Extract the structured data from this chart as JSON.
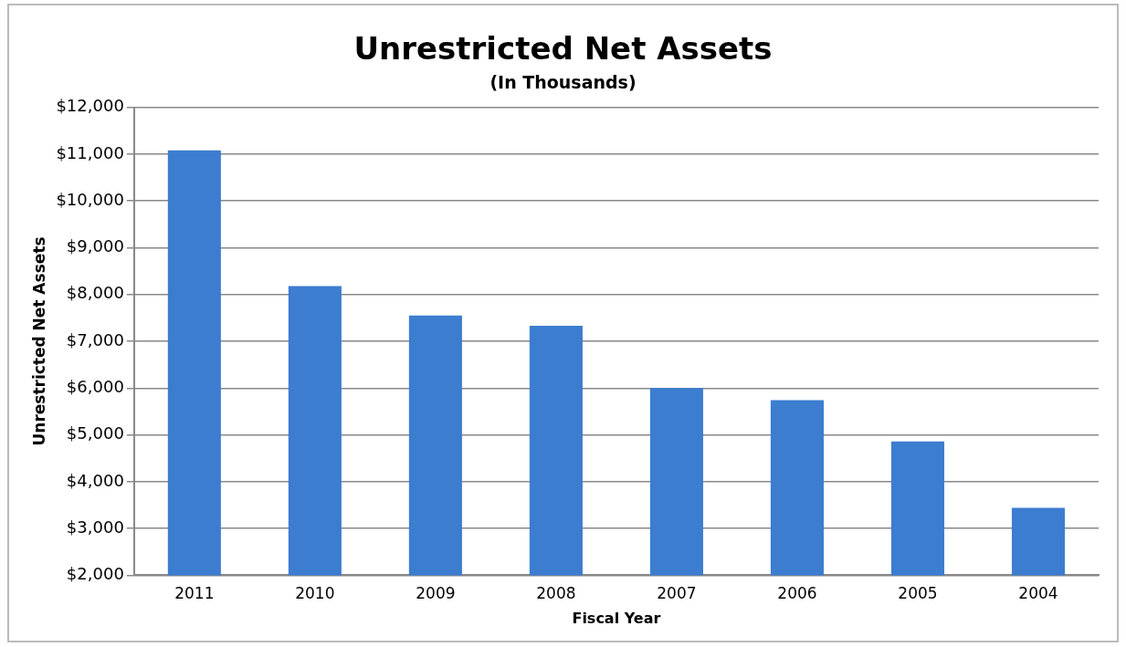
{
  "chart_data": {
    "type": "bar",
    "title": "Unrestricted Net Assets",
    "subtitle": "(In Thousands)",
    "xlabel": "Fiscal Year",
    "ylabel": "Unrestricted Net Assets",
    "categories": [
      "2011",
      "2010",
      "2009",
      "2008",
      "2007",
      "2006",
      "2005",
      "2004"
    ],
    "values": [
      11080,
      8180,
      7550,
      7330,
      6000,
      5740,
      4860,
      3440
    ],
    "color": "#3c7dd0",
    "ylim": [
      2000,
      12000
    ],
    "yticks": [
      {
        "value": 2000,
        "label": "$2,000"
      },
      {
        "value": 3000,
        "label": "$3,000"
      },
      {
        "value": 4000,
        "label": "$4,000"
      },
      {
        "value": 5000,
        "label": "$5,000"
      },
      {
        "value": 6000,
        "label": "$6,000"
      },
      {
        "value": 7000,
        "label": "$7,000"
      },
      {
        "value": 8000,
        "label": "$8,000"
      },
      {
        "value": 9000,
        "label": "$9,000"
      },
      {
        "value": 10000,
        "label": "$10,000"
      },
      {
        "value": 11000,
        "label": "$11,000"
      },
      {
        "value": 12000,
        "label": "$12,000"
      }
    ],
    "grid": "y"
  }
}
